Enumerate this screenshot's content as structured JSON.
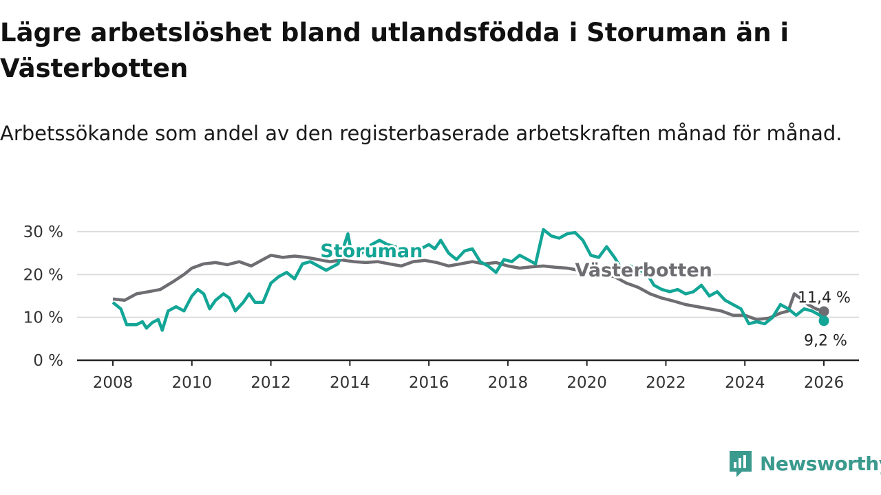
{
  "title": "Lägre arbetslöshet bland utlandsfödda i Storuman än i Västerbotten",
  "subtitle": "Arbetssökande som andel av den registerbaserade arbetskraften månad för månad.",
  "brand": {
    "name": "Newsworthy",
    "icon": "newsworthy-logo-icon"
  },
  "colors": {
    "storuman": "#13a596",
    "vasterbotten": "#6e6d72",
    "grid": "#dddddd",
    "axis": "#222222",
    "brand": "#3b9a8e"
  },
  "chart_data": {
    "type": "line",
    "title": "Lägre arbetslöshet bland utlandsfödda i Storuman än i Västerbotten",
    "xlabel": "",
    "ylabel": "",
    "xlim": [
      2007.5,
      2027
    ],
    "ylim": [
      0,
      30
    ],
    "y_ticks": [
      0,
      10,
      20,
      30
    ],
    "y_tick_labels": [
      "0 %",
      "10 %",
      "20 %",
      "30 %"
    ],
    "x_ticks": [
      2008,
      2010,
      2012,
      2014,
      2016,
      2018,
      2020,
      2022,
      2024,
      2026
    ],
    "x_tick_labels": [
      "2008",
      "2010",
      "2012",
      "2014",
      "2016",
      "2018",
      "2020",
      "2022",
      "2024",
      "2026"
    ],
    "grid": true,
    "series": [
      {
        "name": "Västerbotten",
        "label": "Västerbotten",
        "end_label": "11,4 %",
        "points": [
          [
            2008.0,
            14.3
          ],
          [
            2008.3,
            14.0
          ],
          [
            2008.6,
            15.5
          ],
          [
            2008.9,
            16.0
          ],
          [
            2009.2,
            16.5
          ],
          [
            2009.5,
            18.2
          ],
          [
            2009.8,
            20.0
          ],
          [
            2010.0,
            21.5
          ],
          [
            2010.3,
            22.5
          ],
          [
            2010.6,
            22.8
          ],
          [
            2010.9,
            22.3
          ],
          [
            2011.2,
            23.0
          ],
          [
            2011.5,
            22.0
          ],
          [
            2011.8,
            23.5
          ],
          [
            2012.0,
            24.5
          ],
          [
            2012.3,
            24.0
          ],
          [
            2012.6,
            24.3
          ],
          [
            2012.9,
            24.0
          ],
          [
            2013.2,
            23.5
          ],
          [
            2013.5,
            23.0
          ],
          [
            2013.8,
            23.4
          ],
          [
            2014.1,
            23.0
          ],
          [
            2014.4,
            22.8
          ],
          [
            2014.7,
            23.0
          ],
          [
            2015.0,
            22.5
          ],
          [
            2015.3,
            22.0
          ],
          [
            2015.6,
            23.0
          ],
          [
            2015.9,
            23.3
          ],
          [
            2016.2,
            22.8
          ],
          [
            2016.5,
            22.0
          ],
          [
            2016.8,
            22.5
          ],
          [
            2017.1,
            23.0
          ],
          [
            2017.4,
            22.5
          ],
          [
            2017.7,
            22.8
          ],
          [
            2018.0,
            22.0
          ],
          [
            2018.3,
            21.5
          ],
          [
            2018.6,
            21.8
          ],
          [
            2018.9,
            22.0
          ],
          [
            2019.2,
            21.7
          ],
          [
            2019.5,
            21.5
          ],
          [
            2019.8,
            21.0
          ],
          [
            2020.1,
            20.5
          ],
          [
            2020.4,
            20.0
          ],
          [
            2020.7,
            19.5
          ],
          [
            2021.0,
            18.0
          ],
          [
            2021.3,
            17.0
          ],
          [
            2021.6,
            15.5
          ],
          [
            2021.9,
            14.5
          ],
          [
            2022.2,
            13.8
          ],
          [
            2022.5,
            13.0
          ],
          [
            2022.8,
            12.5
          ],
          [
            2023.1,
            12.0
          ],
          [
            2023.4,
            11.5
          ],
          [
            2023.7,
            10.5
          ],
          [
            2024.0,
            10.5
          ],
          [
            2024.3,
            9.5
          ],
          [
            2024.6,
            9.8
          ],
          [
            2024.9,
            11.0
          ],
          [
            2025.1,
            11.5
          ],
          [
            2025.25,
            15.5
          ],
          [
            2025.4,
            14.5
          ],
          [
            2025.6,
            13.0
          ],
          [
            2025.8,
            12.0
          ],
          [
            2026.0,
            11.4
          ]
        ]
      },
      {
        "name": "Storuman",
        "label": "Storuman",
        "end_label": "9,2 %",
        "points": [
          [
            2008.0,
            13.5
          ],
          [
            2008.2,
            12.0
          ],
          [
            2008.35,
            8.3
          ],
          [
            2008.6,
            8.3
          ],
          [
            2008.75,
            9.0
          ],
          [
            2008.85,
            7.5
          ],
          [
            2009.0,
            8.8
          ],
          [
            2009.15,
            9.5
          ],
          [
            2009.25,
            7.0
          ],
          [
            2009.4,
            11.5
          ],
          [
            2009.6,
            12.5
          ],
          [
            2009.8,
            11.5
          ],
          [
            2010.0,
            15.0
          ],
          [
            2010.15,
            16.5
          ],
          [
            2010.3,
            15.5
          ],
          [
            2010.45,
            12.0
          ],
          [
            2010.6,
            14.0
          ],
          [
            2010.8,
            15.5
          ],
          [
            2010.95,
            14.5
          ],
          [
            2011.1,
            11.5
          ],
          [
            2011.3,
            13.5
          ],
          [
            2011.45,
            15.5
          ],
          [
            2011.6,
            13.5
          ],
          [
            2011.8,
            13.5
          ],
          [
            2012.0,
            18.0
          ],
          [
            2012.2,
            19.5
          ],
          [
            2012.4,
            20.5
          ],
          [
            2012.6,
            19.0
          ],
          [
            2012.8,
            22.5
          ],
          [
            2013.0,
            23.0
          ],
          [
            2013.4,
            21.0
          ],
          [
            2013.7,
            22.5
          ],
          [
            2013.95,
            29.5
          ],
          [
            2014.05,
            24.5
          ],
          [
            2014.3,
            25.0
          ],
          [
            2014.55,
            27.0
          ],
          [
            2014.75,
            28.0
          ],
          [
            2014.95,
            27.0
          ],
          [
            2015.15,
            26.5
          ],
          [
            2015.4,
            25.0
          ],
          [
            2015.6,
            26.5
          ],
          [
            2015.8,
            26.0
          ],
          [
            2016.0,
            27.0
          ],
          [
            2016.15,
            26.0
          ],
          [
            2016.3,
            28.0
          ],
          [
            2016.5,
            25.0
          ],
          [
            2016.7,
            23.5
          ],
          [
            2016.9,
            25.5
          ],
          [
            2017.1,
            26.0
          ],
          [
            2017.3,
            23.0
          ],
          [
            2017.5,
            22.0
          ],
          [
            2017.7,
            20.5
          ],
          [
            2017.9,
            23.5
          ],
          [
            2018.1,
            23.0
          ],
          [
            2018.3,
            24.5
          ],
          [
            2018.5,
            23.5
          ],
          [
            2018.7,
            22.5
          ],
          [
            2018.9,
            30.5
          ],
          [
            2019.1,
            29.0
          ],
          [
            2019.3,
            28.5
          ],
          [
            2019.5,
            29.5
          ],
          [
            2019.7,
            29.8
          ],
          [
            2019.9,
            28.0
          ],
          [
            2020.1,
            24.5
          ],
          [
            2020.3,
            24.0
          ],
          [
            2020.5,
            26.5
          ],
          [
            2020.7,
            24.0
          ],
          [
            2020.9,
            21.0
          ],
          [
            2021.1,
            22.0
          ],
          [
            2021.3,
            21.0
          ],
          [
            2021.5,
            20.5
          ],
          [
            2021.7,
            17.5
          ],
          [
            2021.9,
            16.5
          ],
          [
            2022.1,
            16.0
          ],
          [
            2022.3,
            16.5
          ],
          [
            2022.5,
            15.5
          ],
          [
            2022.7,
            16.0
          ],
          [
            2022.9,
            17.5
          ],
          [
            2023.1,
            15.0
          ],
          [
            2023.3,
            16.0
          ],
          [
            2023.5,
            14.0
          ],
          [
            2023.7,
            13.0
          ],
          [
            2023.9,
            12.0
          ],
          [
            2024.1,
            8.5
          ],
          [
            2024.3,
            9.0
          ],
          [
            2024.5,
            8.5
          ],
          [
            2024.7,
            10.0
          ],
          [
            2024.9,
            13.0
          ],
          [
            2025.1,
            12.0
          ],
          [
            2025.3,
            10.5
          ],
          [
            2025.5,
            12.0
          ],
          [
            2025.7,
            11.5
          ],
          [
            2025.9,
            10.5
          ],
          [
            2026.0,
            9.2
          ]
        ]
      }
    ],
    "annotations": [
      {
        "text": "Storuman",
        "series": "Storuman",
        "x": 2013.25,
        "y": 24.1
      },
      {
        "text": "Västerbotten",
        "series": "Västerbotten",
        "x": 2019.7,
        "y": 19.6
      },
      {
        "text": "11,4 %",
        "series": "Västerbotten",
        "x": 2026.0,
        "y": 11.4
      },
      {
        "text": "9,2 %",
        "series": "Storuman",
        "x": 2026.0,
        "y": 9.2
      }
    ]
  }
}
